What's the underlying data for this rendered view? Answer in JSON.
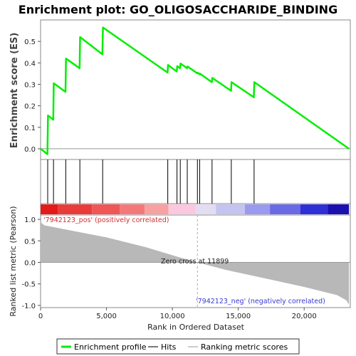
{
  "chart_data": {
    "type": "line",
    "title": "Enrichment plot: GO_OLIGOSACCHARIDE_BINDING",
    "xlabel": "Rank in Ordered Dataset",
    "ylabel_top": "Enrichment score (ES)",
    "ylabel_bottom": "Ranked list metric (Pearson)",
    "x_range": [
      0,
      23500
    ],
    "es_ylim": [
      -0.05,
      0.6
    ],
    "metric_ylim": [
      -1.05,
      1.1
    ],
    "x_ticks": [
      "0",
      "5,000",
      "10,000",
      "15,000",
      "20,000"
    ],
    "x_tick_values": [
      0,
      5000,
      10000,
      15000,
      20000
    ],
    "es_ticks": [
      "0.0",
      "0.1",
      "0.2",
      "0.3",
      "0.4",
      "0.5"
    ],
    "es_tick_values": [
      0.0,
      0.1,
      0.2,
      0.3,
      0.4,
      0.5
    ],
    "metric_ticks": [
      "1.0",
      "0.5",
      "0.0",
      "-0.5",
      "-1.0"
    ],
    "metric_tick_values": [
      1.0,
      0.5,
      0.0,
      -0.5,
      -1.0
    ],
    "es_profile": [
      {
        "x": 0,
        "y": 0.0
      },
      {
        "x": 520,
        "y": -0.025
      },
      {
        "x": 560,
        "y": 0.155
      },
      {
        "x": 960,
        "y": 0.135
      },
      {
        "x": 1000,
        "y": 0.305
      },
      {
        "x": 1890,
        "y": 0.265
      },
      {
        "x": 1930,
        "y": 0.42
      },
      {
        "x": 2960,
        "y": 0.375
      },
      {
        "x": 3000,
        "y": 0.52
      },
      {
        "x": 4690,
        "y": 0.44
      },
      {
        "x": 4730,
        "y": 0.565
      },
      {
        "x": 9630,
        "y": 0.355
      },
      {
        "x": 9670,
        "y": 0.39
      },
      {
        "x": 10330,
        "y": 0.36
      },
      {
        "x": 10370,
        "y": 0.385
      },
      {
        "x": 10580,
        "y": 0.375
      },
      {
        "x": 10620,
        "y": 0.397
      },
      {
        "x": 11110,
        "y": 0.375
      },
      {
        "x": 11150,
        "y": 0.383
      },
      {
        "x": 11880,
        "y": 0.352
      },
      {
        "x": 11930,
        "y": 0.354
      },
      {
        "x": 12050,
        "y": 0.347
      },
      {
        "x": 12090,
        "y": 0.35
      },
      {
        "x": 12990,
        "y": 0.31
      },
      {
        "x": 13030,
        "y": 0.33
      },
      {
        "x": 14450,
        "y": 0.27
      },
      {
        "x": 14490,
        "y": 0.31
      },
      {
        "x": 16180,
        "y": 0.24
      },
      {
        "x": 16220,
        "y": 0.31
      },
      {
        "x": 23400,
        "y": 0.0
      }
    ],
    "hits": [
      540,
      980,
      1910,
      2980,
      4710,
      9650,
      10350,
      10600,
      11130,
      11900,
      12070,
      13010,
      14470,
      16200
    ],
    "zero_cross": 11899,
    "annotation_pos": "'7942123_pos' (positively correlated)",
    "annotation_neg": "'7942123_neg' (negatively correlated)",
    "annotation_zero": "Zero cross at 11899",
    "metric_curve": [
      {
        "x": 0,
        "y": 0.93
      },
      {
        "x": 300,
        "y": 0.86
      },
      {
        "x": 2000,
        "y": 0.76
      },
      {
        "x": 5000,
        "y": 0.58
      },
      {
        "x": 8000,
        "y": 0.35
      },
      {
        "x": 10500,
        "y": 0.12
      },
      {
        "x": 11899,
        "y": 0.0
      },
      {
        "x": 14000,
        "y": -0.17
      },
      {
        "x": 17000,
        "y": -0.37
      },
      {
        "x": 20000,
        "y": -0.57
      },
      {
        "x": 22500,
        "y": -0.76
      },
      {
        "x": 23200,
        "y": -0.88
      },
      {
        "x": 23400,
        "y": -0.98
      }
    ],
    "colorbar": [
      {
        "from": 0,
        "to": 1300,
        "color": "#e41a1a"
      },
      {
        "from": 1300,
        "to": 3900,
        "color": "#ea3b3b"
      },
      {
        "from": 3900,
        "to": 6000,
        "color": "#f05656"
      },
      {
        "from": 6000,
        "to": 7900,
        "color": "#f57878"
      },
      {
        "from": 7900,
        "to": 9700,
        "color": "#f9a0a0"
      },
      {
        "from": 9700,
        "to": 11800,
        "color": "#fcc8e0"
      },
      {
        "from": 11800,
        "to": 13300,
        "color": "#e3dcf2"
      },
      {
        "from": 13300,
        "to": 15500,
        "color": "#c4c4f0"
      },
      {
        "from": 15500,
        "to": 17400,
        "color": "#9a9af0"
      },
      {
        "from": 17400,
        "to": 19700,
        "color": "#6a6ae6"
      },
      {
        "from": 19700,
        "to": 21800,
        "color": "#2f2fd6"
      },
      {
        "from": 21800,
        "to": 23400,
        "color": "#1a10b0"
      }
    ],
    "legend": {
      "profile": "Enrichment profile",
      "hits": "Hits",
      "metric": "Ranking metric scores",
      "profile_color": "#00ee00",
      "hits_color": "#777777",
      "metric_color": "#cccccc"
    }
  }
}
